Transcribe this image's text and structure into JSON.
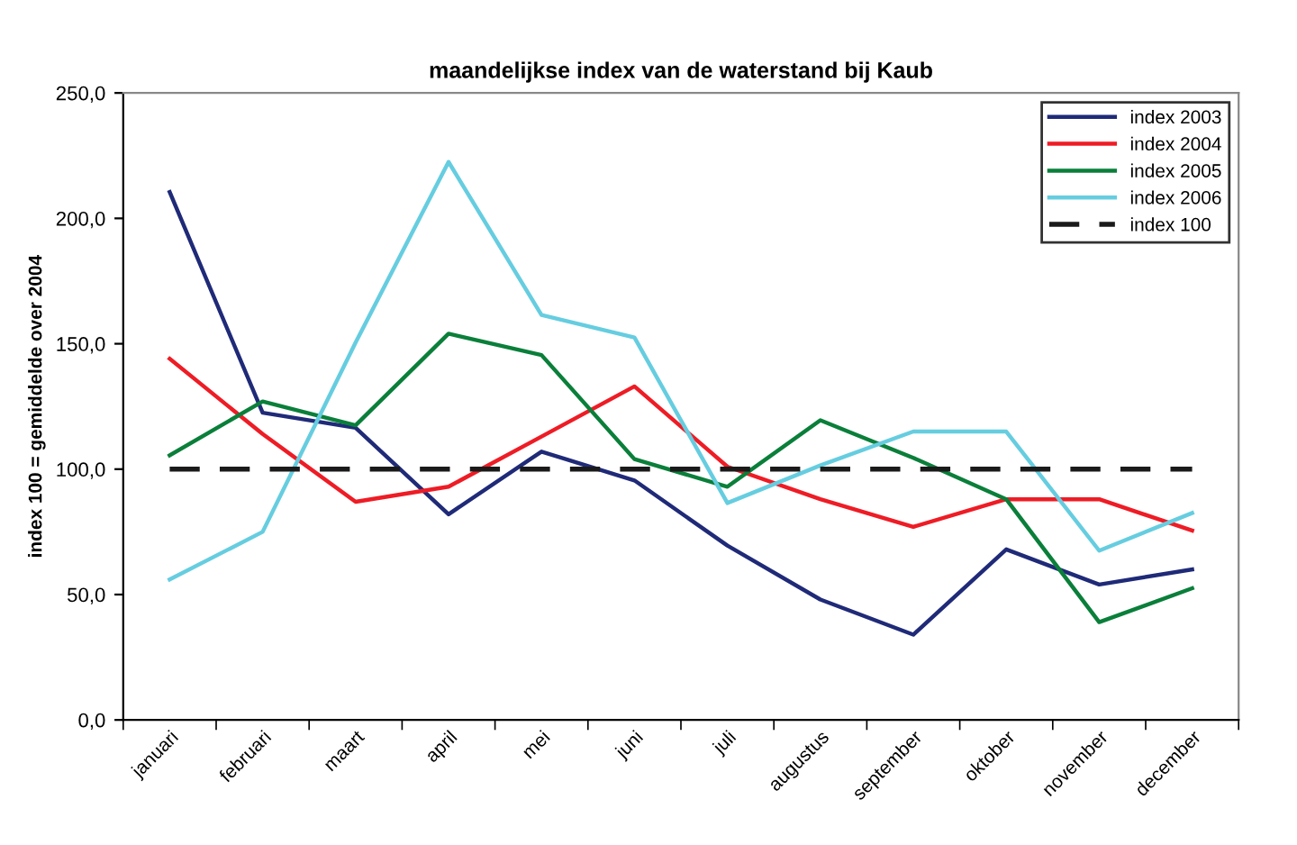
{
  "chart_data": {
    "type": "line",
    "title": "maandelijkse index van de waterstand bij Kaub",
    "ylabel": "index 100 = gemiddelde over 2004",
    "categories": [
      "januari",
      "februari",
      "maart",
      "april",
      "mei",
      "juni",
      "juli",
      "augustus",
      "september",
      "oktober",
      "november",
      "december"
    ],
    "series": [
      {
        "name": "index 2003",
        "color": "#1f2a78",
        "values": [
          210.5,
          122.5,
          116.5,
          82,
          107,
          95.5,
          69.5,
          48,
          34,
          68,
          54,
          60
        ]
      },
      {
        "name": "index 2004",
        "color": "#ee1c25",
        "values": [
          144,
          114,
          87,
          93,
          113,
          133,
          101,
          88,
          77,
          88,
          88,
          75.5
        ]
      },
      {
        "name": "index 2005",
        "color": "#0a7f3a",
        "values": [
          105.5,
          127,
          117.5,
          154,
          145.5,
          104,
          93,
          119.5,
          104.5,
          88,
          39,
          52.5
        ]
      },
      {
        "name": "index 2006",
        "color": "#66cde0",
        "values": [
          56,
          75,
          150.5,
          222.5,
          161.5,
          152.5,
          86.5,
          101.5,
          115,
          115,
          67.5,
          82.5
        ]
      },
      {
        "name": "index 100",
        "color": "#1a1a1a",
        "line_style": "dashed",
        "values": [
          100,
          100,
          100,
          100,
          100,
          100,
          100,
          100,
          100,
          100,
          100,
          100
        ]
      }
    ],
    "ylim": [
      0,
      250
    ],
    "yticks": [
      {
        "value": 0,
        "label": "0,0"
      },
      {
        "value": 50,
        "label": "50,0"
      },
      {
        "value": 100,
        "label": "100,0"
      },
      {
        "value": 150,
        "label": "150,0"
      },
      {
        "value": 200,
        "label": "200,0"
      },
      {
        "value": 250,
        "label": "250,0"
      }
    ],
    "grid": false,
    "legend": "top right",
    "marker": "none"
  }
}
